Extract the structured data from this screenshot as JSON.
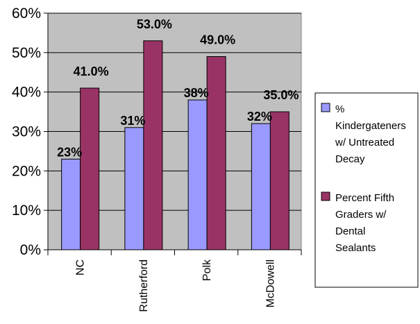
{
  "chart_data": {
    "type": "bar",
    "categories": [
      "NC",
      "Rutherford",
      "Polk",
      "McDowell"
    ],
    "series": [
      {
        "name": "% Kindergateners w/ Untreated Decay",
        "legend_lines": [
          "%",
          "Kindergateners",
          "w/ Untreated",
          "Decay"
        ],
        "values": [
          23,
          31,
          38,
          32
        ],
        "labels": [
          "23%",
          "31%",
          "38%",
          "32%"
        ],
        "color": "#9999ff"
      },
      {
        "name": "Percent Fifth Graders w/ Dental Sealants",
        "legend_lines": [
          "Percent Fifth",
          "Graders w/",
          "Dental",
          "Sealants"
        ],
        "values": [
          41.0,
          53.0,
          49.0,
          35.0
        ],
        "labels": [
          "41.0%",
          "53.0%",
          "49.0%",
          "35.0%"
        ],
        "color": "#993366"
      }
    ],
    "ylim": [
      0,
      60
    ],
    "yticks": [
      0,
      10,
      20,
      30,
      40,
      50,
      60
    ],
    "ytick_labels": [
      "0%",
      "10%",
      "20%",
      "30%",
      "40%",
      "50%",
      "60%"
    ],
    "plot_background": "#c0c0c0",
    "grid": true,
    "legend_position": "right",
    "title": "",
    "xlabel": "",
    "ylabel": ""
  }
}
